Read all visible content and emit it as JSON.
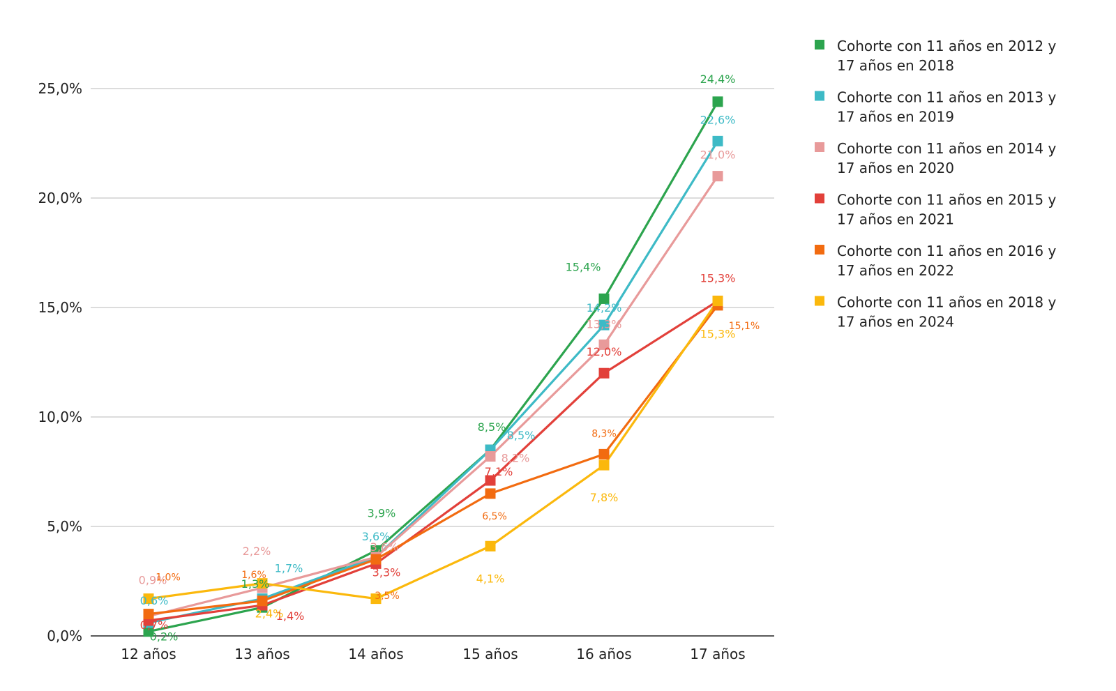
{
  "chart_data": {
    "type": "line",
    "title": "",
    "xlabel": "",
    "ylabel": "",
    "categories": [
      "12 años",
      "13 años",
      "14 años",
      "15 años",
      "16 años",
      "17 años"
    ],
    "ylim": [
      0,
      25
    ],
    "yticks": [
      0,
      5,
      10,
      15,
      20,
      25
    ],
    "ytick_labels": [
      "0,0%",
      "5,0%",
      "10,0%",
      "15,0%",
      "20,0%",
      "25,0%"
    ],
    "grid": true,
    "legend_position": "right",
    "series": [
      {
        "name": "Cohorte con 11 años en 2012 y 17 años en 2018",
        "legend_lines": [
          "Cohorte con 11 años en 2012 y",
          "17 años en 2018"
        ],
        "color": "#2ca44e",
        "values": [
          0.2,
          1.3,
          3.9,
          8.5,
          15.4,
          24.4
        ],
        "labels": [
          "0,2%",
          "1,3%",
          "3,9%",
          "8,5%",
          "15,4%",
          "24,4%"
        ]
      },
      {
        "name": "Cohorte con 11 años en 2013 y 17 años en 2019",
        "legend_lines": [
          "Cohorte con 11 años en 2013 y",
          "17 años en 2019"
        ],
        "color": "#3dbac6",
        "values": [
          0.6,
          1.7,
          3.6,
          8.5,
          14.2,
          22.6
        ],
        "labels": [
          "0,6%",
          "1,7%",
          "3,6%",
          "8,5%",
          "14,2%",
          "22,6%"
        ]
      },
      {
        "name": "Cohorte con 11 años en 2014 y 17 años en 2020",
        "legend_lines": [
          "Cohorte con 11 años en 2014 y",
          "17 años en 2020"
        ],
        "color": "#e89a9a",
        "values": [
          0.9,
          2.2,
          3.6,
          8.2,
          13.3,
          21.0
        ],
        "labels": [
          "0,9%",
          "2,2%",
          "3,6%",
          "8,2%",
          "13,3%",
          "21,0%"
        ]
      },
      {
        "name": "Cohorte con 11 años en 2015 y 17 años en 2021",
        "legend_lines": [
          "Cohorte con 11 años en 2015 y",
          "17 años en 2021"
        ],
        "color": "#e2403a",
        "values": [
          0.7,
          1.4,
          3.3,
          7.1,
          12.0,
          15.3
        ],
        "labels": [
          "0,7%",
          "1,4%",
          "3,3%",
          "7,1%",
          "12,0%",
          "15,3%"
        ]
      },
      {
        "name": "Cohorte con 11 años en 2016 y 17 años en 2022",
        "legend_lines": [
          "Cohorte con 11 años en 2016 y",
          "17 años en 2022"
        ],
        "color": "#f26b10",
        "values": [
          1.0,
          1.6,
          3.5,
          6.5,
          8.3,
          15.1
        ],
        "labels": [
          "1,0%",
          "1,6%",
          "3,5%",
          "6,5%",
          "8,3%",
          "15,1%"
        ]
      },
      {
        "name": "Cohorte con 11 años en 2018 y 17 años en 2024",
        "legend_lines": [
          "Cohorte con 11 años en 2018 y",
          "17 años en 2024"
        ],
        "color": "#fbb80c",
        "values": [
          1.7,
          2.4,
          1.7,
          4.1,
          7.8,
          15.3
        ],
        "labels": [
          "",
          "2,4%",
          "",
          "4,1%",
          "7,8%",
          "15,3%"
        ]
      }
    ]
  }
}
